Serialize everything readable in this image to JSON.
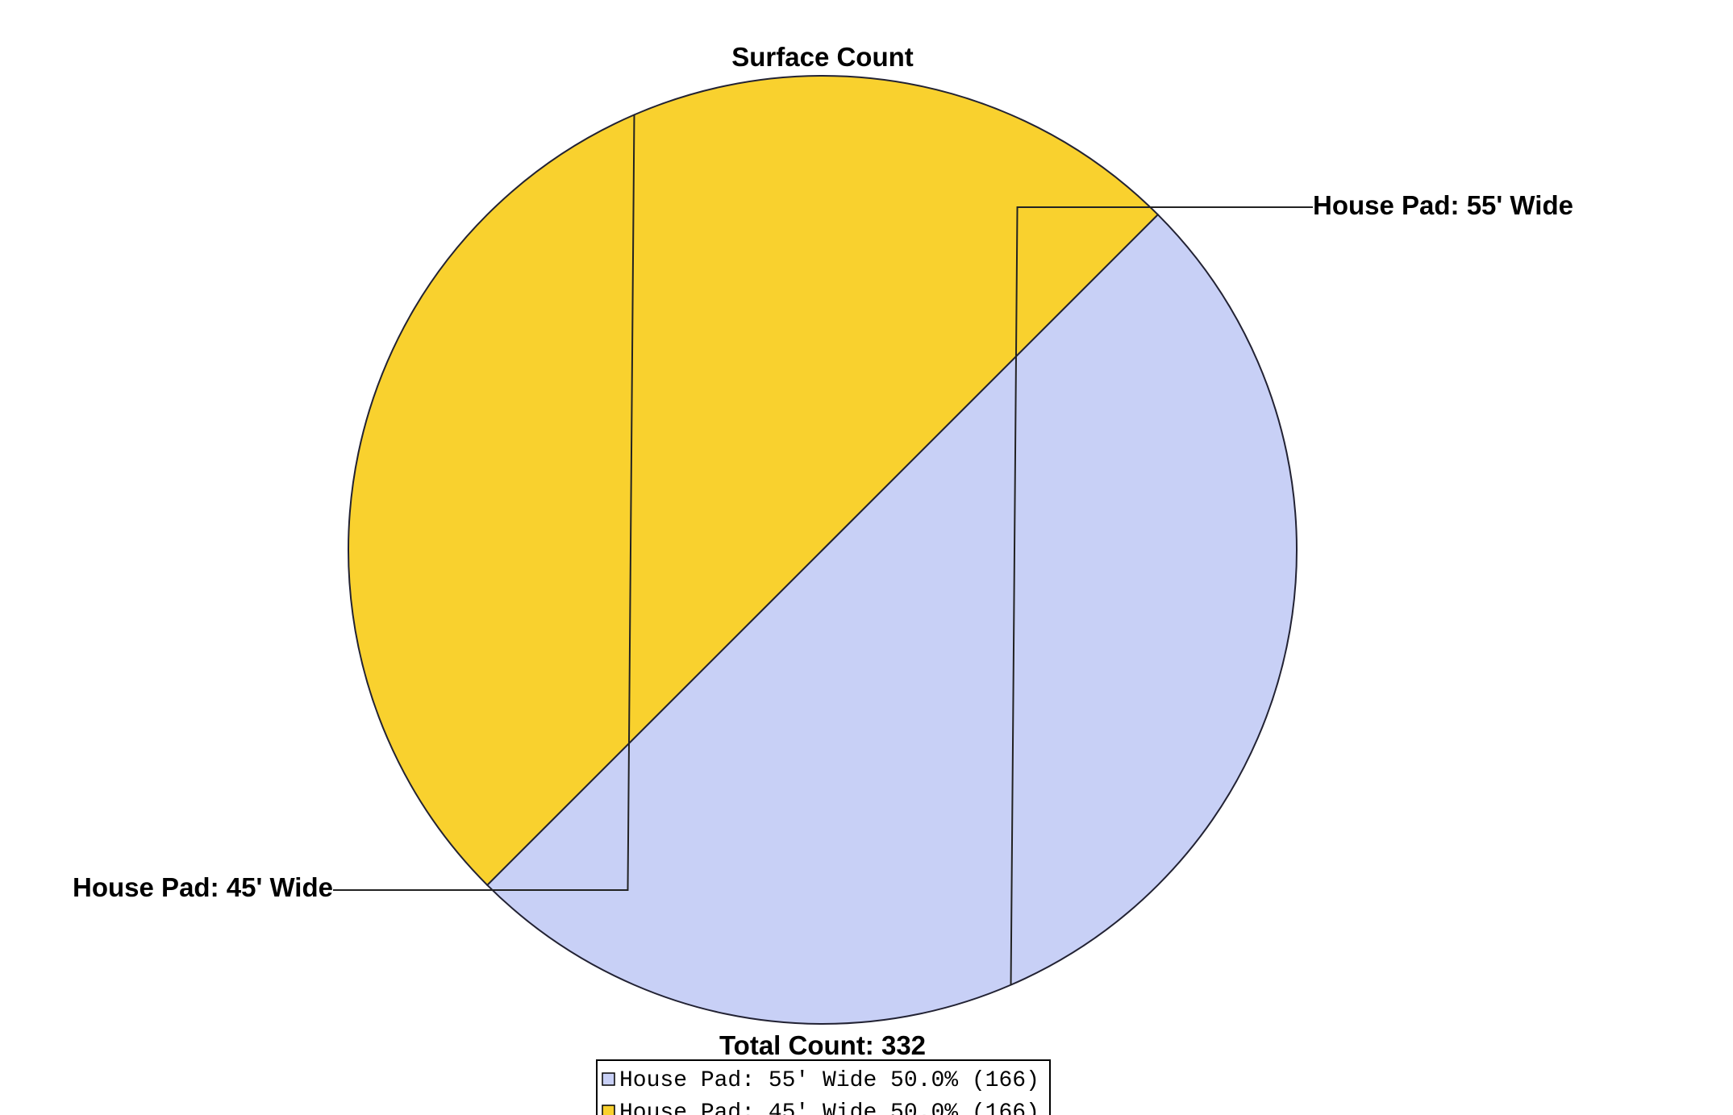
{
  "chart_data": {
    "type": "pie",
    "title": "Surface Count",
    "total_label": "Total Count: 332",
    "slices": [
      {
        "label": "House Pad: 55' Wide",
        "value": 166,
        "percent": 50.0,
        "color": "#c8d0f6",
        "legend_text": "House Pad: 55' Wide 50.0% (166)"
      },
      {
        "label": "House Pad: 45' Wide",
        "value": 166,
        "percent": 50.0,
        "color": "#f9d12e",
        "legend_text": "House Pad: 45' Wide 50.0% (166)"
      }
    ],
    "start_angle_deg": -45,
    "direction": "clockwise",
    "outline_color": "#222233"
  }
}
